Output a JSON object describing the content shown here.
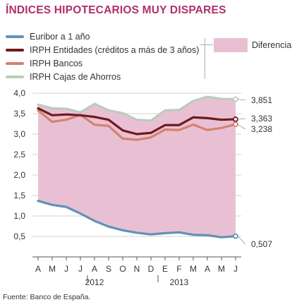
{
  "title": "ÍNDICES HIPOTECARIOS MUY DISPARES",
  "source": "Fuente: Banco de España.",
  "legend": {
    "difference_label": "Diferencia"
  },
  "colors": {
    "euribor": "#5e93b8",
    "irph_entidades": "#6e1a1f",
    "irph_bancos": "#d4826e",
    "irph_cajas": "#bccbbe",
    "difference_fill": "#e9c0d3",
    "title": "#b0306a"
  },
  "chart_data": {
    "type": "line",
    "title": "ÍNDICES HIPOTECARIOS MUY DISPARES",
    "xlabel": "",
    "ylabel": "",
    "categories": [
      "A",
      "M",
      "J",
      "J",
      "A",
      "S",
      "O",
      "N",
      "D",
      "E",
      "F",
      "M",
      "A",
      "M",
      "J"
    ],
    "year_labels": [
      {
        "label": "2012",
        "category_index": 4
      },
      {
        "label": "2013",
        "category_index": 10
      }
    ],
    "ylim": [
      0,
      4
    ],
    "yticks": [
      "0,5",
      "1,0",
      "1,5",
      "2,0",
      "2,5",
      "3,0",
      "3,5",
      "4,0"
    ],
    "grid": true,
    "legend_position": "top",
    "shaded_area": "Diferencia",
    "series": [
      {
        "name": "Euribor a 1 año",
        "color_key": "euribor",
        "values": [
          1.37,
          1.27,
          1.22,
          1.06,
          0.88,
          0.74,
          0.65,
          0.59,
          0.55,
          0.58,
          0.6,
          0.54,
          0.53,
          0.48,
          0.507
        ],
        "end_label": "0,507"
      },
      {
        "name": "IRPH Entidades (créditos a  más de 3 años)",
        "color_key": "irph_entidades",
        "values": [
          3.63,
          3.46,
          3.48,
          3.46,
          3.42,
          3.35,
          3.09,
          3.0,
          3.03,
          3.22,
          3.22,
          3.41,
          3.39,
          3.35,
          3.363
        ],
        "end_label": "3,363"
      },
      {
        "name": "IRPH Bancos",
        "color_key": "irph_bancos",
        "values": [
          3.58,
          3.3,
          3.35,
          3.47,
          3.23,
          3.2,
          2.89,
          2.86,
          2.92,
          3.11,
          3.1,
          3.23,
          3.1,
          3.15,
          3.238
        ],
        "end_label": "3,238"
      },
      {
        "name": "IRPH Cajas de Ahorros",
        "color_key": "irph_cajas",
        "values": [
          3.72,
          3.63,
          3.62,
          3.53,
          3.74,
          3.58,
          3.51,
          3.35,
          3.33,
          3.58,
          3.59,
          3.81,
          3.91,
          3.86,
          3.851
        ],
        "end_label": "3,851"
      }
    ]
  }
}
